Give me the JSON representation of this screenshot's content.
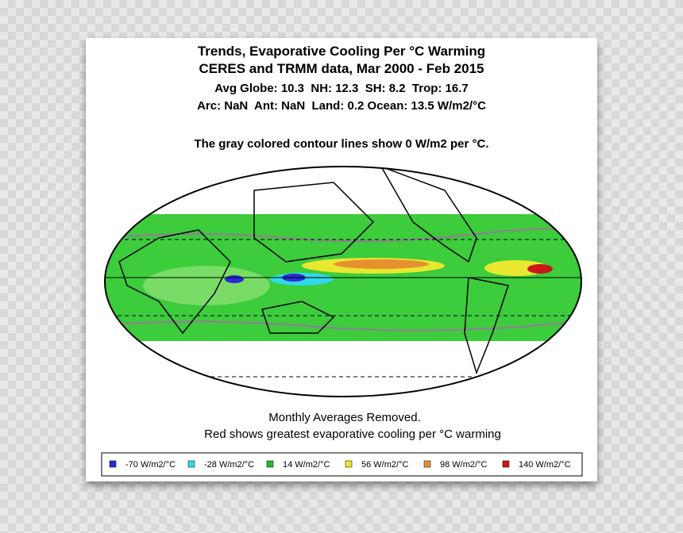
{
  "header": {
    "title": [
      "Trends, Evaporative Cooling Per °C Warming",
      "CERES and TRMM data, Mar 2000 - Feb 2015"
    ],
    "stats": [
      "Avg Globe: 10.3  NH: 12.3  SH: 8.2  Trop: 16.7",
      "Arc: NaN  Ant: NaN  Land: 0.2 Ocean: 13.5 W/m2/°C"
    ],
    "note": "The gray colored contour lines show 0 W/m2 per °C."
  },
  "footer": [
    "Monthly Averages Removed.",
    "Red shows greatest evaporative cooling per °C warming"
  ],
  "legend": {
    "items": [
      {
        "label": "-70 W/m2/°C",
        "color": "#2a2ad8"
      },
      {
        "label": "-28 W/m2/°C",
        "color": "#30d8e8"
      },
      {
        "label": "14 W/m2/°C",
        "color": "#22b832"
      },
      {
        "label": "56 W/m2/°C",
        "color": "#e8e830"
      },
      {
        "label": "98 W/m2/°C",
        "color": "#e89030"
      },
      {
        "label": "140 W/m2/°C",
        "color": "#c81818"
      }
    ]
  }
}
